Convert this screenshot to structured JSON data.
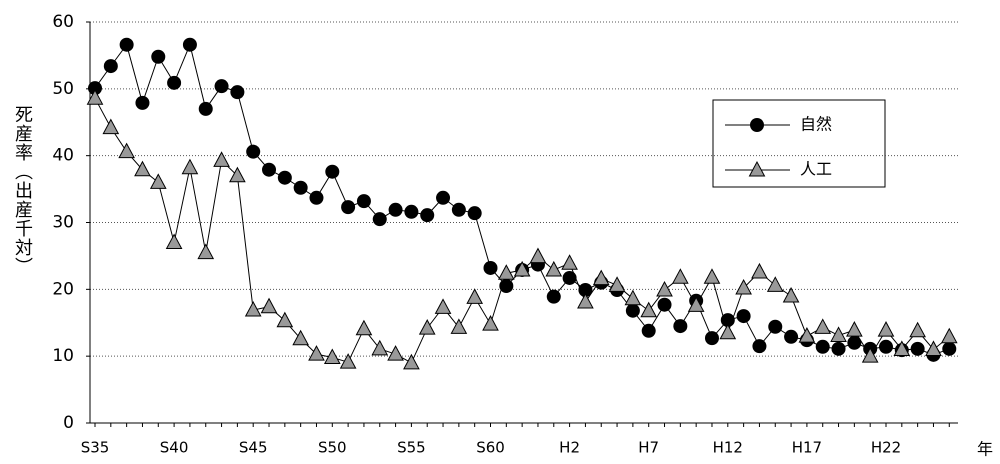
{
  "chart_data": {
    "type": "line",
    "y_label": "死産率（出産千対）",
    "x_label": "年",
    "categories": [
      "S35",
      null,
      null,
      null,
      null,
      "S40",
      null,
      null,
      null,
      null,
      "S45",
      null,
      null,
      null,
      null,
      "S50",
      null,
      null,
      null,
      null,
      "S55",
      null,
      null,
      null,
      null,
      "S60",
      null,
      null,
      null,
      null,
      "H2",
      null,
      null,
      null,
      null,
      "H7",
      null,
      null,
      null,
      null,
      "H12",
      null,
      null,
      null,
      null,
      "H17",
      null,
      null,
      null,
      null,
      "H22",
      null,
      null,
      null,
      null
    ],
    "series": [
      {
        "name": "自然",
        "color": "#000000",
        "marker": "circle",
        "values": [
          50.1,
          53.4,
          56.6,
          47.9,
          54.8,
          50.9,
          56.6,
          47.0,
          50.4,
          49.5,
          40.6,
          37.9,
          36.7,
          35.2,
          33.7,
          37.6,
          32.3,
          33.2,
          30.5,
          31.9,
          31.6,
          31.1,
          33.7,
          31.9,
          31.4,
          23.2,
          20.5,
          22.9,
          23.7,
          18.9,
          21.7,
          19.9,
          21.0,
          19.9,
          16.8,
          13.8,
          17.7,
          14.5,
          18.3,
          12.7,
          15.4,
          16.0,
          11.5,
          14.4,
          12.9,
          12.4,
          11.4,
          11.1,
          12.0,
          11.1,
          11.4,
          10.9,
          11.1,
          10.2,
          11.1
        ]
      },
      {
        "name": "人工",
        "color": "#999999",
        "marker": "triangle",
        "values": [
          48.6,
          44.2,
          40.6,
          37.9,
          36.0,
          27.0,
          38.2,
          25.5,
          39.3,
          37.0,
          16.9,
          17.4,
          15.3,
          12.6,
          10.3,
          9.8,
          9.1,
          14.1,
          11.1,
          10.3,
          9.0,
          14.2,
          17.3,
          14.3,
          18.8,
          14.8,
          22.4,
          22.9,
          24.9,
          22.9,
          23.9,
          18.1,
          21.6,
          20.6,
          18.6,
          16.8,
          19.9,
          21.8,
          17.6,
          21.8,
          13.5,
          20.2,
          22.6,
          20.6,
          19.0,
          13.0,
          14.3,
          13.1,
          13.9,
          10.0,
          13.9,
          11.0,
          13.8,
          11.0,
          12.9
        ]
      }
    ],
    "ylim": [
      0,
      60
    ],
    "yticks": [
      0,
      10,
      20,
      30,
      40,
      50,
      60
    ],
    "grid": true,
    "legend": "upper right"
  }
}
